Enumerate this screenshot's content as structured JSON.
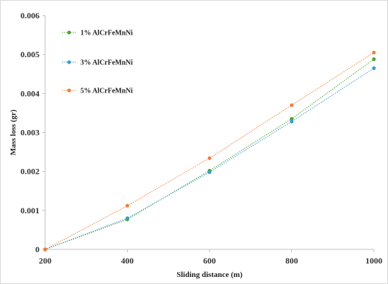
{
  "chart_data": {
    "type": "line",
    "title": "",
    "xlabel": "Sliding distance (m)",
    "ylabel": "Mass loss (gr)",
    "x": [
      200,
      400,
      600,
      800,
      1000
    ],
    "xlim": [
      200,
      1000
    ],
    "ylim": [
      0,
      0.006
    ],
    "x_ticks": [
      "200",
      "400",
      "600",
      "800",
      "1000"
    ],
    "y_ticks": [
      "0",
      "0.001",
      "0.002",
      "0.003",
      "0.004",
      "0.005",
      "0.006"
    ],
    "grid": false,
    "legend_position": "top-left",
    "series": [
      {
        "name": "1% AlCrFeMnNi",
        "color": "#4aa52e",
        "values": [
          0,
          0.00077,
          0.00202,
          0.00335,
          0.00488
        ]
      },
      {
        "name": "3% AlCrFeMnNi",
        "color": "#3c9ad0",
        "values": [
          0,
          0.0008,
          0.00198,
          0.00328,
          0.00465
        ]
      },
      {
        "name": "5% AlCrFeMnNi",
        "color": "#f07f3c",
        "values": [
          0,
          0.00112,
          0.00234,
          0.0037,
          0.00505
        ]
      }
    ]
  }
}
